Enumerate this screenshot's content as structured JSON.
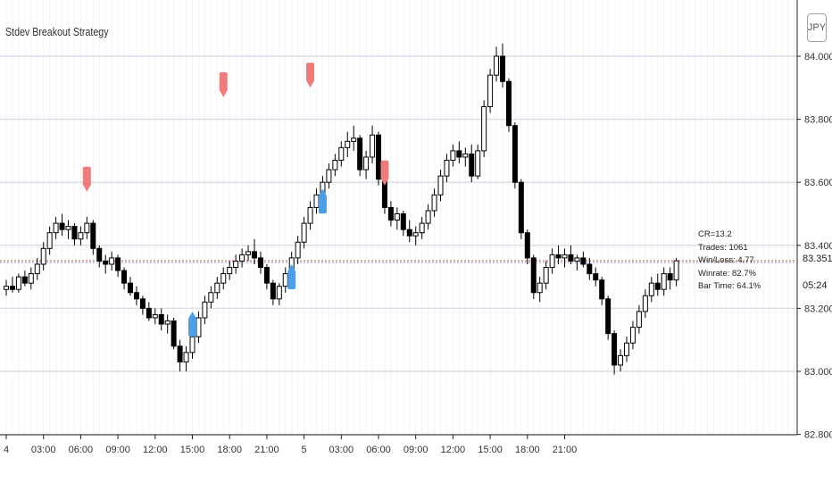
{
  "title": "Stdev Breakout Strategy",
  "currency": "JPY",
  "price_tag": "83.351",
  "countdown": "05:24",
  "stats": {
    "cr": "CR=13.2",
    "trades": "Trades: 1061",
    "winloss": "Win/Loss: 4.77",
    "winrate": "Winrate: 82.7%",
    "bartime": "Bar Time: 64.1%"
  },
  "colors": {
    "up_candle": "#ffffff",
    "down_candle": "#000000",
    "grid": "#d6dde6",
    "sell_marker": "#f07b7b",
    "buy_marker": "#4b9fe6",
    "price_line": "#c04a4a"
  },
  "chart_data": {
    "type": "candlestick",
    "title": "Stdev Breakout Strategy",
    "currency": "JPY",
    "ylim": [
      82.8,
      84.05
    ],
    "yticks": [
      "84.000",
      "83.800",
      "83.600",
      "83.400",
      "83.200",
      "83.000",
      "82.800"
    ],
    "xticks": [
      "4",
      "03:00",
      "06:00",
      "09:00",
      "12:00",
      "15:00",
      "18:00",
      "21:00",
      "5",
      "03:00",
      "06:00",
      "09:00",
      "12:00",
      "15:00",
      "18:00",
      "21:00"
    ],
    "x_start": "4 00:00",
    "bar_interval_minutes": 30,
    "current_price": 83.351,
    "candles": [
      [
        83.26,
        83.29,
        83.24,
        83.27
      ],
      [
        83.27,
        83.3,
        83.25,
        83.26
      ],
      [
        83.26,
        83.31,
        83.25,
        83.3
      ],
      [
        83.3,
        83.32,
        83.27,
        83.28
      ],
      [
        83.28,
        83.33,
        83.26,
        83.31
      ],
      [
        83.31,
        83.36,
        83.29,
        83.34
      ],
      [
        83.34,
        83.41,
        83.32,
        83.39
      ],
      [
        83.39,
        83.46,
        83.37,
        83.44
      ],
      [
        83.44,
        83.49,
        83.42,
        83.47
      ],
      [
        83.47,
        83.5,
        83.43,
        83.45
      ],
      [
        83.45,
        83.48,
        83.42,
        83.46
      ],
      [
        83.46,
        83.47,
        83.4,
        83.42
      ],
      [
        83.42,
        83.46,
        83.4,
        83.44
      ],
      [
        83.44,
        83.49,
        83.42,
        83.47
      ],
      [
        83.47,
        83.48,
        83.37,
        83.39
      ],
      [
        83.39,
        83.4,
        83.33,
        83.35
      ],
      [
        83.35,
        83.37,
        83.31,
        83.34
      ],
      [
        83.34,
        83.38,
        83.32,
        83.36
      ],
      [
        83.36,
        83.37,
        83.3,
        83.32
      ],
      [
        83.32,
        83.33,
        83.26,
        83.28
      ],
      [
        83.28,
        83.3,
        83.24,
        83.25
      ],
      [
        83.25,
        83.27,
        83.21,
        83.23
      ],
      [
        83.23,
        83.24,
        83.18,
        83.2
      ],
      [
        83.2,
        83.22,
        83.16,
        83.17
      ],
      [
        83.17,
        83.2,
        83.15,
        83.18
      ],
      [
        83.18,
        83.2,
        83.13,
        83.15
      ],
      [
        83.15,
        83.18,
        83.12,
        83.16
      ],
      [
        83.16,
        83.17,
        83.07,
        83.08
      ],
      [
        83.08,
        83.1,
        83.0,
        83.03
      ],
      [
        83.03,
        83.08,
        83.0,
        83.06
      ],
      [
        83.06,
        83.13,
        83.04,
        83.11
      ],
      [
        83.11,
        83.19,
        83.09,
        83.17
      ],
      [
        83.17,
        83.24,
        83.15,
        83.22
      ],
      [
        83.22,
        83.27,
        83.2,
        83.25
      ],
      [
        83.25,
        83.3,
        83.23,
        83.28
      ],
      [
        83.28,
        83.33,
        83.26,
        83.31
      ],
      [
        83.31,
        83.35,
        83.29,
        83.33
      ],
      [
        83.33,
        83.37,
        83.31,
        83.35
      ],
      [
        83.35,
        83.39,
        83.33,
        83.37
      ],
      [
        83.37,
        83.4,
        83.35,
        83.38
      ],
      [
        83.38,
        83.42,
        83.34,
        83.36
      ],
      [
        83.36,
        83.38,
        83.31,
        83.33
      ],
      [
        83.33,
        83.34,
        83.26,
        83.28
      ],
      [
        83.28,
        83.29,
        83.21,
        83.23
      ],
      [
        83.23,
        83.28,
        83.21,
        83.27
      ],
      [
        83.27,
        83.33,
        83.25,
        83.31
      ],
      [
        83.31,
        83.38,
        83.29,
        83.36
      ],
      [
        83.36,
        83.43,
        83.34,
        83.41
      ],
      [
        83.41,
        83.49,
        83.39,
        83.47
      ],
      [
        83.47,
        83.54,
        83.45,
        83.52
      ],
      [
        83.52,
        83.58,
        83.5,
        83.56
      ],
      [
        83.56,
        83.62,
        83.54,
        83.6
      ],
      [
        83.6,
        83.66,
        83.58,
        83.64
      ],
      [
        83.64,
        83.69,
        83.62,
        83.67
      ],
      [
        83.67,
        83.73,
        83.65,
        83.71
      ],
      [
        83.71,
        83.76,
        83.68,
        83.73
      ],
      [
        83.73,
        83.78,
        83.7,
        83.74
      ],
      [
        83.74,
        83.75,
        83.62,
        83.64
      ],
      [
        83.64,
        83.7,
        83.61,
        83.68
      ],
      [
        83.68,
        83.78,
        83.66,
        83.75
      ],
      [
        83.75,
        83.76,
        83.59,
        83.61
      ],
      [
        83.61,
        83.62,
        83.5,
        83.52
      ],
      [
        83.52,
        83.54,
        83.46,
        83.48
      ],
      [
        83.48,
        83.52,
        83.45,
        83.5
      ],
      [
        83.5,
        83.51,
        83.43,
        83.45
      ],
      [
        83.45,
        83.48,
        83.41,
        83.43
      ],
      [
        83.43,
        83.46,
        83.4,
        83.44
      ],
      [
        83.44,
        83.49,
        83.42,
        83.47
      ],
      [
        83.47,
        83.53,
        83.45,
        83.51
      ],
      [
        83.51,
        83.58,
        83.49,
        83.56
      ],
      [
        83.56,
        83.64,
        83.54,
        83.62
      ],
      [
        83.62,
        83.69,
        83.6,
        83.67
      ],
      [
        83.67,
        83.72,
        83.65,
        83.7
      ],
      [
        83.7,
        83.73,
        83.66,
        83.68
      ],
      [
        83.68,
        83.71,
        83.65,
        83.69
      ],
      [
        83.69,
        83.72,
        83.6,
        83.62
      ],
      [
        83.62,
        83.72,
        83.61,
        83.7
      ],
      [
        83.7,
        83.86,
        83.68,
        83.84
      ],
      [
        83.84,
        83.96,
        83.82,
        83.94
      ],
      [
        83.94,
        84.03,
        83.92,
        84.0
      ],
      [
        84.0,
        84.04,
        83.9,
        83.92
      ],
      [
        83.92,
        83.93,
        83.76,
        83.78
      ],
      [
        83.78,
        83.79,
        83.58,
        83.6
      ],
      [
        83.6,
        83.61,
        83.42,
        83.44
      ],
      [
        83.44,
        83.45,
        83.34,
        83.36
      ],
      [
        83.36,
        83.37,
        83.23,
        83.25
      ],
      [
        83.25,
        83.3,
        83.22,
        83.28
      ],
      [
        83.28,
        83.35,
        83.26,
        83.33
      ],
      [
        83.33,
        83.39,
        83.31,
        83.37
      ],
      [
        83.37,
        83.4,
        83.34,
        83.36
      ],
      [
        83.36,
        83.39,
        83.33,
        83.37
      ],
      [
        83.37,
        83.4,
        83.34,
        83.35
      ],
      [
        83.35,
        83.37,
        83.32,
        83.36
      ],
      [
        83.36,
        83.38,
        83.33,
        83.34
      ],
      [
        83.34,
        83.36,
        83.29,
        83.31
      ],
      [
        83.31,
        83.33,
        83.27,
        83.29
      ],
      [
        83.29,
        83.3,
        83.21,
        83.23
      ],
      [
        83.23,
        83.24,
        83.1,
        83.12
      ],
      [
        83.12,
        83.13,
        82.99,
        83.02
      ],
      [
        83.02,
        83.07,
        83.0,
        83.05
      ],
      [
        83.05,
        83.11,
        83.03,
        83.09
      ],
      [
        83.09,
        83.16,
        83.07,
        83.14
      ],
      [
        83.14,
        83.21,
        83.12,
        83.19
      ],
      [
        83.19,
        83.26,
        83.17,
        83.24
      ],
      [
        83.24,
        83.3,
        83.22,
        83.28
      ],
      [
        83.28,
        83.31,
        83.24,
        83.26
      ],
      [
        83.26,
        83.33,
        83.24,
        83.31
      ],
      [
        83.31,
        83.33,
        83.26,
        83.29
      ],
      [
        83.29,
        83.36,
        83.27,
        83.351
      ]
    ],
    "buy_markers": [
      {
        "time": "4 15:00",
        "price": 83.19
      },
      {
        "time": "4 23:00",
        "price": 83.34
      },
      {
        "time": "5 01:30",
        "price": 83.58
      }
    ],
    "sell_markers": [
      {
        "time": "4 06:30",
        "price": 83.57
      },
      {
        "time": "4 17:30",
        "price": 83.87
      },
      {
        "time": "5 00:30",
        "price": 83.9
      },
      {
        "time": "5 06:30",
        "price": 83.59
      }
    ]
  }
}
